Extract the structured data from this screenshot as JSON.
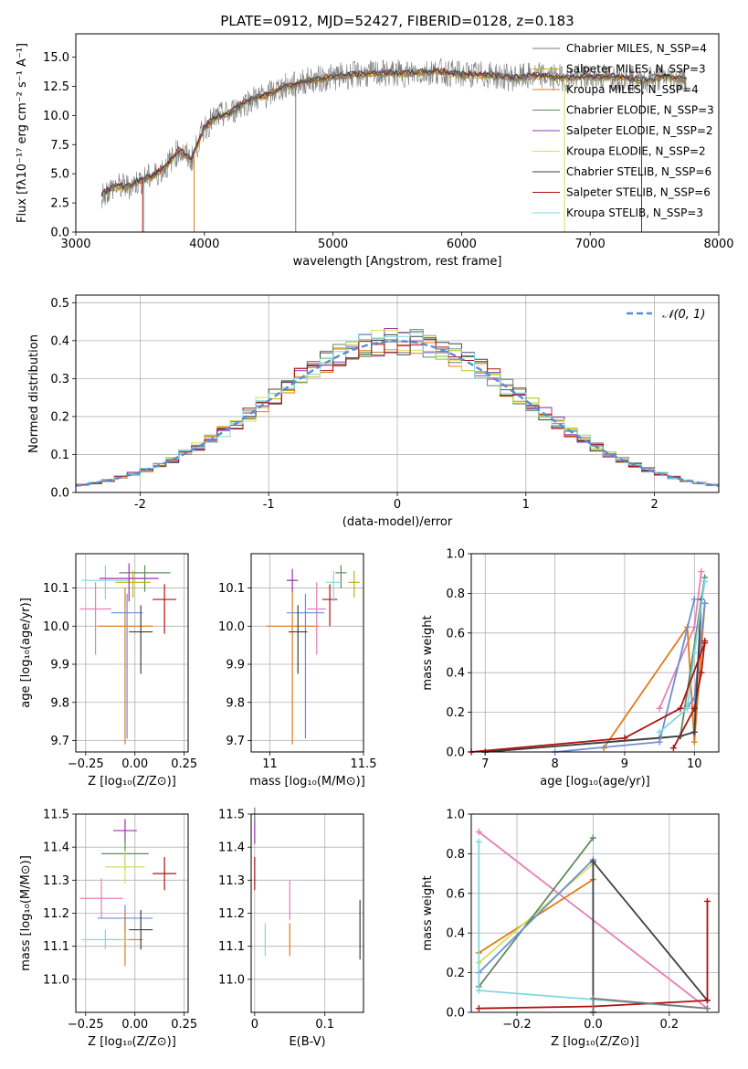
{
  "figure_title": "PLATE=0912, MJD=52427, FIBERID=0128, z=0.183",
  "chart_data": [
    {
      "id": "spectrum",
      "type": "line",
      "title": "PLATE=0912, MJD=52427, FIBERID=0128, z=0.183",
      "xlabel": "wavelength [Angstrom, rest frame]",
      "ylabel": "Flux [fλ10⁻¹⁷ erg cm⁻² s⁻¹ A⁻¹]",
      "xlim": [
        3000,
        8000
      ],
      "ylim": [
        0,
        17
      ],
      "xticks": [
        3000,
        4000,
        5000,
        6000,
        7000,
        8000
      ],
      "yticks": [
        0.0,
        2.5,
        5.0,
        7.5,
        10.0,
        12.5,
        15.0
      ],
      "grid": false,
      "legend_position": "right",
      "spectrum_envelope": {
        "x": [
          3200,
          3300,
          3400,
          3500,
          3600,
          3700,
          3800,
          3900,
          4000,
          4100,
          4200,
          4300,
          4400,
          4500,
          4600,
          4700,
          4800,
          4900,
          5000,
          5200,
          5400,
          5600,
          5800,
          6000,
          6200,
          6400,
          6600,
          6800,
          7000,
          7200,
          7400,
          7600,
          7750
        ],
        "y": [
          3.2,
          3.9,
          3.9,
          4.4,
          4.8,
          5.6,
          7.0,
          6.2,
          9.0,
          9.9,
          10.2,
          11.0,
          11.5,
          11.8,
          12.4,
          12.6,
          13.0,
          13.1,
          13.3,
          13.5,
          13.6,
          13.6,
          13.8,
          13.5,
          13.5,
          13.2,
          13.4,
          13.2,
          13.3,
          13.3,
          13.0,
          13.3,
          13.0
        ]
      },
      "legend": [
        "Chabrier MILES, N_SSP=4",
        "Salpeter MILES, N_SSP=3",
        "Kroupa MILES, N_SSP=4",
        "Chabrier ELODIE, N_SSP=3",
        "Salpeter ELODIE, N_SSP=2",
        "Kroupa ELODIE, N_SSP=2",
        "Chabrier STELIB, N_SSP=6",
        "Salpeter STELIB, N_SSP=6",
        "Kroupa STELIB, N_SSP=3"
      ]
    },
    {
      "id": "residuals",
      "type": "line",
      "xlabel": "(data-model)/error",
      "ylabel": "Normed distribution",
      "xlim": [
        -2.5,
        2.5
      ],
      "ylim": [
        0,
        0.52
      ],
      "xticks": [
        -2,
        -1,
        0,
        1,
        2
      ],
      "yticks": [
        0.0,
        0.1,
        0.2,
        0.3,
        0.4,
        0.5
      ],
      "grid": true,
      "legend_position": "top-right",
      "legend": [
        "𝒩(0, 1)"
      ]
    },
    {
      "id": "age_vs_metallicity",
      "type": "scatter",
      "xlabel": "Z [log₁₀(Z/Z⊙)]",
      "ylabel": "age  [log₁₀(age/yr)]",
      "xlim": [
        -0.3,
        0.27
      ],
      "ylim": [
        9.67,
        10.19
      ],
      "xticks": [
        -0.25,
        0.0,
        0.25
      ],
      "xtick_labels": [
        "−0.25",
        "0.00",
        "0.25"
      ],
      "yticks": [
        9.7,
        9.8,
        9.9,
        10.0,
        10.1
      ],
      "grid": true,
      "points": [
        {
          "x": -0.05,
          "y": 10.0,
          "xerr": 0.14,
          "yerr_lo": 0.31,
          "yerr_hi": 0.1
        },
        {
          "x": -0.2,
          "y": 10.045,
          "xerr": 0.08,
          "yerr_lo": 0.12,
          "yerr_hi": 0.07
        },
        {
          "x": -0.04,
          "y": 10.035,
          "xerr": 0.08,
          "yerr_lo": 0.33,
          "yerr_hi": 0.05
        },
        {
          "x": 0.03,
          "y": 9.985,
          "xerr": 0.06,
          "yerr_lo": 0.11,
          "yerr_hi": 0.07
        },
        {
          "x": 0.15,
          "y": 10.07,
          "xerr": 0.06,
          "yerr_lo": 0.09,
          "yerr_hi": 0.04
        },
        {
          "x": 0.05,
          "y": 10.14,
          "xerr": 0.13,
          "yerr_lo": 0.05,
          "yerr_hi": 0.02
        },
        {
          "x": -0.01,
          "y": 10.115,
          "xerr": 0.09,
          "yerr_lo": 0.04,
          "yerr_hi": 0.03
        },
        {
          "x": -0.15,
          "y": 10.12,
          "xerr": 0.12,
          "yerr_lo": 0.05,
          "yerr_hi": 0.04
        },
        {
          "x": -0.03,
          "y": 10.125,
          "xerr": 0.15,
          "yerr_lo": 0.06,
          "yerr_hi": 0.04
        }
      ]
    },
    {
      "id": "age_vs_mass",
      "type": "scatter",
      "xlabel": "mass [log₁₀(M/M⊙)]",
      "ylabel": "",
      "xlim": [
        10.9,
        11.5
      ],
      "ylim": [
        9.67,
        10.19
      ],
      "xticks": [
        11.0,
        11.5
      ],
      "yticks": [
        9.7,
        9.8,
        9.9,
        10.0,
        10.1
      ],
      "grid": true,
      "points": [
        {
          "x": 11.12,
          "y": 10.0,
          "xerr": 0.14,
          "yerr_lo": 0.31,
          "yerr_hi": 0.1
        },
        {
          "x": 11.25,
          "y": 10.045,
          "xerr": 0.05,
          "yerr_lo": 0.12,
          "yerr_hi": 0.07
        },
        {
          "x": 11.19,
          "y": 10.035,
          "xerr": 0.1,
          "yerr_lo": 0.33,
          "yerr_hi": 0.05
        },
        {
          "x": 11.15,
          "y": 9.985,
          "xerr": 0.05,
          "yerr_lo": 0.11,
          "yerr_hi": 0.07
        },
        {
          "x": 11.32,
          "y": 10.07,
          "xerr": 0.04,
          "yerr_lo": 0.07,
          "yerr_hi": 0.04
        },
        {
          "x": 11.38,
          "y": 10.14,
          "xerr": 0.03,
          "yerr_lo": 0.04,
          "yerr_hi": 0.02
        },
        {
          "x": 11.45,
          "y": 10.115,
          "xerr": 0.03,
          "yerr_lo": 0.04,
          "yerr_hi": 0.03
        },
        {
          "x": 11.34,
          "y": 10.115,
          "xerr": 0.04,
          "yerr_lo": 0.05,
          "yerr_hi": 0.03
        },
        {
          "x": 11.12,
          "y": 10.12,
          "xerr": 0.03,
          "yerr_lo": 0.03,
          "yerr_hi": 0.03
        }
      ]
    },
    {
      "id": "weight_vs_age",
      "type": "line",
      "xlabel": "age  [log₁₀(age/yr)]",
      "ylabel": "mass weight",
      "xlim": [
        6.8,
        10.35
      ],
      "ylim": [
        0.0,
        1.0
      ],
      "xticks": [
        7,
        8,
        9,
        10
      ],
      "yticks": [
        0.0,
        0.2,
        0.4,
        0.6,
        0.8,
        1.0
      ],
      "grid": true,
      "series": [
        {
          "x": [
            9.5,
            10.0,
            10.1
          ],
          "y": [
            0.22,
            0.63,
            0.91
          ]
        },
        {
          "x": [
            8.7,
            9.9,
            10.0,
            10.15
          ],
          "y": [
            0.02,
            0.63,
            0.05,
            0.75
          ]
        },
        {
          "x": [
            9.9,
            10.0,
            10.15
          ],
          "y": [
            0.23,
            0.27,
            0.75
          ]
        },
        {
          "x": [
            7.0,
            9.5,
            9.8,
            10.15
          ],
          "y": [
            0.0,
            0.07,
            0.08,
            0.88
          ]
        },
        {
          "x": [
            9.7,
            10.0,
            10.1,
            10.15
          ],
          "y": [
            0.02,
            0.22,
            0.4,
            0.56
          ]
        },
        {
          "x": [
            7.0,
            9.8,
            10.0,
            10.1
          ],
          "y": [
            0.0,
            0.08,
            0.1,
            0.77
          ]
        },
        {
          "x": [
            8.0,
            9.5,
            10.0
          ],
          "y": [
            0.0,
            0.05,
            0.77
          ]
        },
        {
          "x": [
            9.5,
            9.9,
            10.0,
            10.15
          ],
          "y": [
            0.1,
            0.22,
            0.5,
            0.86
          ]
        },
        {
          "x": [
            6.8,
            9.0,
            9.8,
            10.15
          ],
          "y": [
            0.0,
            0.07,
            0.22,
            0.55
          ]
        }
      ]
    },
    {
      "id": "mass_vs_metallicity",
      "type": "scatter",
      "xlabel": "Z [log₁₀(Z/Z⊙)]",
      "ylabel": "mass [log₁₀(M/M⊙)]",
      "xlim": [
        -0.3,
        0.27
      ],
      "ylim": [
        10.9,
        11.5
      ],
      "xticks": [
        -0.25,
        0.0,
        0.25
      ],
      "xtick_labels": [
        "−0.25",
        "0.00",
        "0.25"
      ],
      "yticks": [
        11.0,
        11.1,
        11.2,
        11.3,
        11.4,
        11.5
      ],
      "grid": true,
      "points": [
        {
          "x": -0.05,
          "y": 11.45,
          "xerr": 0.06,
          "yerr": 0.035
        },
        {
          "x": -0.05,
          "y": 11.38,
          "xerr": 0.12,
          "yerr": 0.05
        },
        {
          "x": -0.05,
          "y": 11.34,
          "xerr": 0.1,
          "yerr": 0.05
        },
        {
          "x": 0.15,
          "y": 11.32,
          "xerr": 0.06,
          "yerr": 0.05
        },
        {
          "x": -0.17,
          "y": 11.245,
          "xerr": 0.11,
          "yerr": 0.06
        },
        {
          "x": -0.05,
          "y": 11.185,
          "xerr": 0.14,
          "yerr": 0.04
        },
        {
          "x": -0.05,
          "y": 11.12,
          "xerr": 0.09,
          "yerr": 0.08
        },
        {
          "x": 0.03,
          "y": 11.15,
          "xerr": 0.06,
          "yerr": 0.06
        },
        {
          "x": -0.15,
          "y": 11.12,
          "xerr": 0.12,
          "yerr": 0.03
        }
      ]
    },
    {
      "id": "mass_vs_ebv",
      "type": "scatter",
      "xlabel": "E(B-V)",
      "ylabel": "",
      "xlim": [
        -0.005,
        0.155
      ],
      "ylim": [
        10.9,
        11.5
      ],
      "xticks": [
        0.0,
        0.1
      ],
      "yticks": [
        11.0,
        11.1,
        11.2,
        11.3,
        11.4,
        11.5
      ],
      "grid": true,
      "points": [
        {
          "x": 0.0,
          "y": 11.45,
          "yerr": 0.04
        },
        {
          "x": 0.0,
          "y": 11.32,
          "yerr": 0.05
        },
        {
          "x": 0.05,
          "y": 11.24,
          "yerr": 0.06
        },
        {
          "x": 0.05,
          "y": 11.12,
          "yerr": 0.05
        },
        {
          "x": 0.015,
          "y": 11.12,
          "yerr": 0.05
        },
        {
          "x": 0.15,
          "y": 11.15,
          "yerr": 0.09
        },
        {
          "x": 0.0,
          "y": 11.5,
          "yerr": 0.02
        }
      ]
    },
    {
      "id": "weight_vs_metallicity",
      "type": "line",
      "xlabel": "Z [log₁₀(Z/Z⊙)]",
      "ylabel": "mass weight",
      "xlim": [
        -0.32,
        0.33
      ],
      "ylim": [
        0.0,
        1.0
      ],
      "xticks": [
        -0.2,
        0.0,
        0.2
      ],
      "xtick_labels": [
        "−0.2",
        "0.0",
        "0.2"
      ],
      "yticks": [
        0.0,
        0.2,
        0.4,
        0.6,
        0.8,
        1.0
      ],
      "grid": true,
      "series": [
        {
          "x": [
            -0.3,
            0.3
          ],
          "y": [
            0.91,
            0.02
          ]
        },
        {
          "x": [
            -0.3,
            0.0
          ],
          "y": [
            0.3,
            0.67
          ]
        },
        {
          "x": [
            -0.3,
            0.0
          ],
          "y": [
            0.25,
            0.75
          ]
        },
        {
          "x": [
            -0.3,
            0.0
          ],
          "y": [
            0.13,
            0.88
          ]
        },
        {
          "x": [
            -0.3,
            0.0
          ],
          "y": [
            0.2,
            0.77
          ]
        },
        {
          "x": [
            -0.3,
            -0.3,
            0.3
          ],
          "y": [
            0.86,
            0.11,
            0.02
          ]
        },
        {
          "x": [
            0.0,
            0.0,
            0.3
          ],
          "y": [
            0.0,
            0.76,
            0.06
          ]
        },
        {
          "x": [
            -0.3,
            0.0,
            0.3,
            0.3
          ],
          "y": [
            0.02,
            0.03,
            0.06,
            0.56
          ]
        },
        {
          "x": [
            0.0,
            0.0,
            0.3
          ],
          "y": [
            0.0,
            0.07,
            0.02
          ]
        }
      ]
    }
  ],
  "colors": {
    "chabrier_miles": "#7a7a7a",
    "salpeter_miles": "#b8b800",
    "kroupa_miles": "#e07b1a",
    "chabrier_elodie": "#5e8a5e",
    "salpeter_elodie": "#9b30b0",
    "kroupa_elodie": "#d4e05a",
    "chabrier_stelib": "#404040",
    "salpeter_stelib": "#b01010",
    "kroupa_stelib": "#7fd8e0",
    "normal": "#5b8bd6",
    "pink": "#e67fb8",
    "blue": "#6b8fd6"
  }
}
